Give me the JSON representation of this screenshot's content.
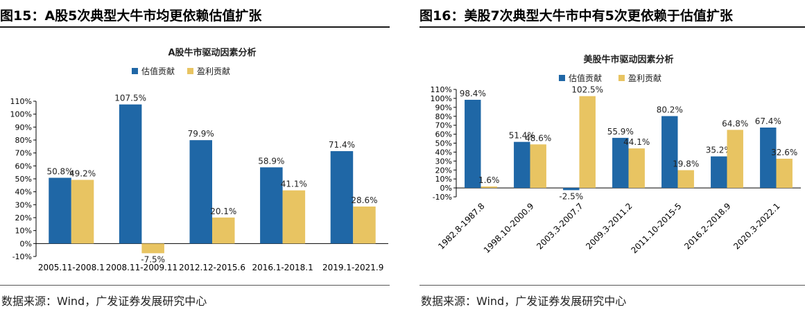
{
  "figures": [
    {
      "id": "left",
      "title": "图15：A股5次典型大牛市均更依赖估值扩张",
      "source": "数据来源：Wind，广发证券发展研究中心"
    },
    {
      "id": "right",
      "title": "图16：美股7次典型大牛市中有5次更依赖于估值扩张",
      "source": "数据来源：Wind，广发证券发展研究中心"
    }
  ],
  "colors": {
    "valuation": "#1f67a6",
    "earnings": "#e8c462"
  },
  "chart_data": [
    {
      "type": "bar",
      "title": "A股牛市驱动因素分析",
      "categories": [
        "2005.11-2008.1",
        "2008.11-2009.11",
        "2012.12-2015.6",
        "2016.1-2018.1",
        "2019.1-2021.9"
      ],
      "series": [
        {
          "name": "估值贡献",
          "values": [
            50.8,
            107.5,
            79.9,
            58.9,
            71.4
          ],
          "labels": [
            "50.8%",
            "107.5%",
            "79.9%",
            "58.9%",
            "71.4%"
          ]
        },
        {
          "name": "盈利贡献",
          "values": [
            49.2,
            -7.5,
            20.1,
            41.1,
            28.6
          ],
          "labels": [
            "49.2%",
            "-7.5%",
            "20.1%",
            "41.1%",
            "28.6%"
          ]
        }
      ],
      "yticks": [
        "110%",
        "100%",
        "90%",
        "80%",
        "70%",
        "60%",
        "50%",
        "40%",
        "30%",
        "20%",
        "10%",
        "0%",
        "-10%"
      ],
      "ylim": [
        -10,
        110
      ],
      "legend": "top-center",
      "grid": false
    },
    {
      "type": "bar",
      "title": "美股牛市驱动因素分析",
      "categories": [
        "1982.8-1987.8",
        "1998.10-2000.9",
        "2003.3-2007.7",
        "2009.3-2011.2",
        "2011.10-2015-5",
        "2016.2-2018.9",
        "2020.3-2022.1"
      ],
      "series": [
        {
          "name": "估值贡献",
          "values": [
            98.4,
            51.4,
            -2.5,
            55.9,
            80.2,
            35.2,
            67.4
          ],
          "labels": [
            "98.4%",
            "51.4%",
            "-2.5%",
            "55.9%",
            "80.2%",
            "35.2%",
            "67.4%"
          ]
        },
        {
          "name": "盈利贡献",
          "values": [
            1.6,
            48.6,
            102.5,
            44.1,
            19.8,
            64.8,
            32.6
          ],
          "labels": [
            "1.6%",
            "48.6%",
            "102.5%",
            "44.1%",
            "19.8%",
            "64.8%",
            "32.6%"
          ]
        }
      ],
      "yticks": [
        "110%",
        "100%",
        "90%",
        "80%",
        "70%",
        "60%",
        "50%",
        "40%",
        "30%",
        "20%",
        "10%",
        "0%",
        "-10%"
      ],
      "ylim": [
        -10,
        110
      ],
      "legend": "top-center",
      "grid": false
    }
  ]
}
